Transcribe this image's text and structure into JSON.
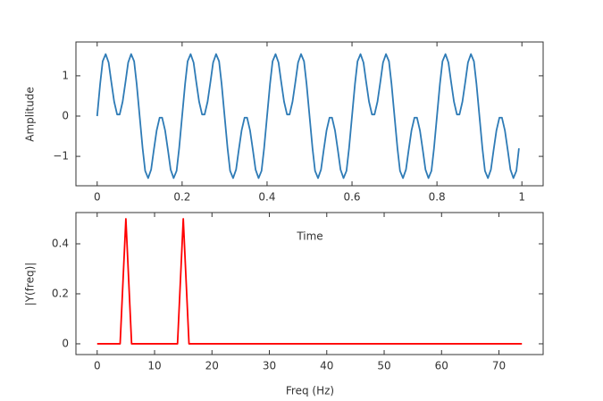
{
  "chart_data": [
    {
      "type": "line",
      "xlabel": "Time",
      "ylabel": "Amplitude",
      "color": "#2e7bb6",
      "xlim": [
        -0.05,
        1.05
      ],
      "ylim": [
        -1.73,
        1.84
      ],
      "xticks": [
        0,
        0.2,
        0.4,
        0.6,
        0.8,
        1
      ],
      "yticks": [
        {
          "value": -1,
          "label": "−1"
        },
        0,
        1
      ],
      "x": [
        0,
        0.007,
        0.013,
        0.02,
        0.027,
        0.033,
        0.04,
        0.047,
        0.053,
        0.06,
        0.067,
        0.073,
        0.08,
        0.087,
        0.093,
        0.1,
        0.107,
        0.113,
        0.12,
        0.127,
        0.133,
        0.14,
        0.147,
        0.153,
        0.16,
        0.167,
        0.173,
        0.18,
        0.187,
        0.193,
        0.2,
        0.207,
        0.213,
        0.22,
        0.227,
        0.233,
        0.24,
        0.247,
        0.253,
        0.26,
        0.267,
        0.273,
        0.28,
        0.287,
        0.293,
        0.3,
        0.307,
        0.313,
        0.32,
        0.327,
        0.333,
        0.34,
        0.347,
        0.353,
        0.36,
        0.367,
        0.373,
        0.38,
        0.387,
        0.393,
        0.4,
        0.407,
        0.413,
        0.42,
        0.427,
        0.433,
        0.44,
        0.447,
        0.453,
        0.46,
        0.467,
        0.473,
        0.48,
        0.487,
        0.493,
        0.5,
        0.507,
        0.513,
        0.52,
        0.527,
        0.533,
        0.54,
        0.547,
        0.553,
        0.56,
        0.567,
        0.573,
        0.58,
        0.587,
        0.593,
        0.6,
        0.607,
        0.613,
        0.62,
        0.627,
        0.633,
        0.64,
        0.647,
        0.653,
        0.66,
        0.667,
        0.673,
        0.68,
        0.687,
        0.693,
        0.7,
        0.707,
        0.713,
        0.72,
        0.727,
        0.733,
        0.74,
        0.747,
        0.753,
        0.76,
        0.767,
        0.773,
        0.78,
        0.787,
        0.793,
        0.8,
        0.807,
        0.813,
        0.82,
        0.827,
        0.833,
        0.84,
        0.847,
        0.853,
        0.86,
        0.867,
        0.873,
        0.88,
        0.887,
        0.893,
        0.9,
        0.907,
        0.913,
        0.92,
        0.927,
        0.933,
        0.94,
        0.947,
        0.953,
        0.96,
        0.967,
        0.973,
        0.98,
        0.987,
        0.993
      ],
      "values": [
        0,
        0.8,
        1.36,
        1.54,
        1.33,
        0.87,
        0.36,
        0.04,
        0.04,
        0.36,
        0.87,
        1.33,
        1.54,
        1.36,
        0.8,
        0,
        -0.8,
        -1.36,
        -1.54,
        -1.33,
        -0.87,
        -0.36,
        -0.04,
        -0.04,
        -0.36,
        -0.87,
        -1.33,
        -1.54,
        -1.36,
        -0.8,
        0,
        0.8,
        1.36,
        1.54,
        1.33,
        0.87,
        0.36,
        0.04,
        0.04,
        0.36,
        0.87,
        1.33,
        1.54,
        1.36,
        0.8,
        0,
        -0.8,
        -1.36,
        -1.54,
        -1.33,
        -0.87,
        -0.36,
        -0.04,
        -0.04,
        -0.36,
        -0.87,
        -1.33,
        -1.54,
        -1.36,
        -0.8,
        0,
        0.8,
        1.36,
        1.54,
        1.33,
        0.87,
        0.36,
        0.04,
        0.04,
        0.36,
        0.87,
        1.33,
        1.54,
        1.36,
        0.8,
        0,
        -0.8,
        -1.36,
        -1.54,
        -1.33,
        -0.87,
        -0.36,
        -0.04,
        -0.04,
        -0.36,
        -0.87,
        -1.33,
        -1.54,
        -1.36,
        -0.8,
        0,
        0.8,
        1.36,
        1.54,
        1.33,
        0.87,
        0.36,
        0.04,
        0.04,
        0.36,
        0.87,
        1.33,
        1.54,
        1.36,
        0.8,
        0,
        -0.8,
        -1.36,
        -1.54,
        -1.33,
        -0.87,
        -0.36,
        -0.04,
        -0.04,
        -0.36,
        -0.87,
        -1.33,
        -1.54,
        -1.36,
        -0.8,
        0,
        0.8,
        1.36,
        1.54,
        1.33,
        0.87,
        0.36,
        0.04,
        0.04,
        0.36,
        0.87,
        1.33,
        1.54,
        1.36,
        0.8,
        0,
        -0.8,
        -1.36,
        -1.54,
        -1.33,
        -0.87,
        -0.36,
        -0.04,
        -0.04,
        -0.36,
        -0.87,
        -1.33,
        -1.54,
        -1.36,
        -0.8
      ]
    },
    {
      "type": "line",
      "xlabel": "Freq (Hz)",
      "ylabel": "|Y(freq)|",
      "color": "#ff0000",
      "xlim": [
        -3.7,
        77.7
      ],
      "ylim": [
        -0.043,
        0.525
      ],
      "xticks": [
        0,
        10,
        20,
        30,
        40,
        50,
        60,
        70
      ],
      "yticks": [
        0,
        0.2,
        0.4
      ],
      "x": [
        0,
        1,
        2,
        3,
        4,
        5,
        6,
        7,
        8,
        9,
        10,
        11,
        12,
        13,
        14,
        15,
        16,
        17,
        18,
        19,
        20,
        21,
        22,
        23,
        24,
        25,
        26,
        27,
        28,
        29,
        30,
        31,
        32,
        33,
        34,
        35,
        36,
        37,
        38,
        39,
        40,
        41,
        42,
        43,
        44,
        45,
        46,
        47,
        48,
        49,
        50,
        51,
        52,
        53,
        54,
        55,
        56,
        57,
        58,
        59,
        60,
        61,
        62,
        63,
        64,
        65,
        66,
        67,
        68,
        69,
        70,
        71,
        72,
        73,
        74
      ],
      "values": [
        0,
        0,
        0,
        0,
        0,
        0.5,
        0,
        0,
        0,
        0,
        0,
        0,
        0,
        0,
        0,
        0.5,
        0,
        0,
        0,
        0,
        0,
        0,
        0,
        0,
        0,
        0,
        0,
        0,
        0,
        0,
        0,
        0,
        0,
        0,
        0,
        0,
        0,
        0,
        0,
        0,
        0,
        0,
        0,
        0,
        0,
        0,
        0,
        0,
        0,
        0,
        0,
        0,
        0,
        0,
        0,
        0,
        0,
        0,
        0,
        0,
        0,
        0,
        0,
        0,
        0,
        0,
        0,
        0,
        0,
        0,
        0,
        0,
        0,
        0,
        0
      ]
    }
  ]
}
